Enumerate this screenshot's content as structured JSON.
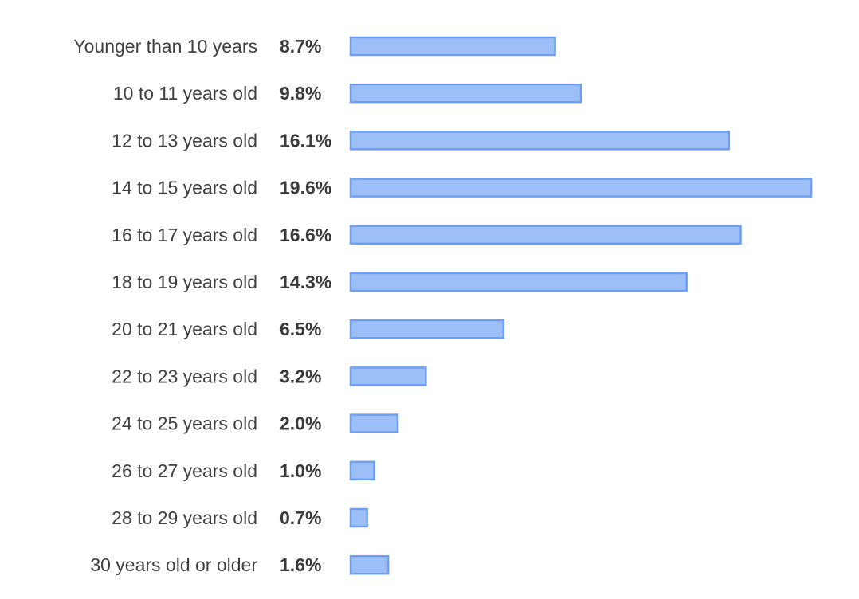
{
  "chart_data": {
    "type": "bar",
    "orientation": "horizontal",
    "categories": [
      "Younger than 10 years",
      "10 to 11 years old",
      "12 to 13 years old",
      "14 to 15 years old",
      "16 to 17 years old",
      "18 to 19 years old",
      "20 to 21 years old",
      "22 to 23 years old",
      "24 to 25 years old",
      "26 to 27 years old",
      "28 to 29 years old",
      "30 years old or older"
    ],
    "values": [
      8.7,
      9.8,
      16.1,
      19.6,
      16.6,
      14.3,
      6.5,
      3.2,
      2.0,
      1.0,
      0.7,
      1.6
    ],
    "value_labels": [
      "8.7%",
      "9.8%",
      "16.1%",
      "19.6%",
      "16.6%",
      "14.3%",
      "6.5%",
      "3.2%",
      "2.0%",
      "1.0%",
      "0.7%",
      "1.6%"
    ],
    "title": "",
    "xlabel": "",
    "ylabel": "",
    "xlim": [
      0,
      19.6
    ],
    "grid": false,
    "legend": "none",
    "colors": {
      "bar_fill": "#9dbff7",
      "bar_stroke": "#6f9ff0",
      "category_text": "#3f3f3f",
      "value_text": "#3a3a3a",
      "background": "#ffffff"
    }
  }
}
